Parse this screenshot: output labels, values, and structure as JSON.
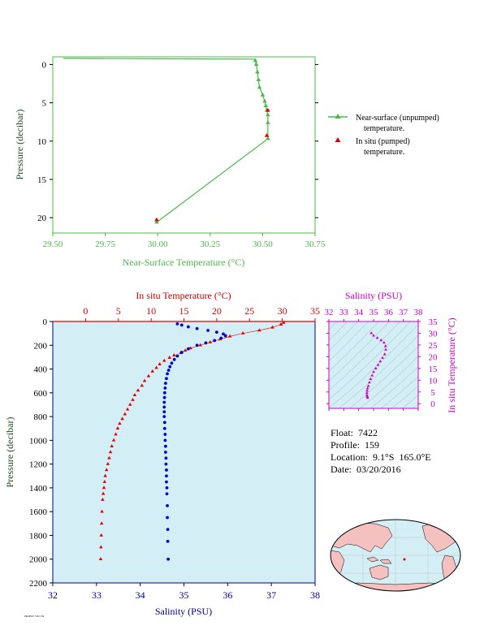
{
  "float_info": {
    "float_label": "Float:  7422",
    "profile_label": "Profile:  159",
    "location_label": "Location:  9.1°S  165.0°E",
    "date_label": "Date:  03/20/2016"
  },
  "footer_text": "PROFILE 7422 159",
  "colors": {
    "green": "#4cb84c",
    "red": "#e00000",
    "blue": "#0000cc",
    "magenta": "#cc00cc",
    "dark_axis": "#00008b",
    "ocean_bg": "#d4eef6",
    "land": "#f5c0c0"
  },
  "chart_data": [
    {
      "id": "near_surface",
      "type": "line",
      "xlabel": "Near-Surface Temperature (°C)",
      "ylabel": "Pressure (decibar)",
      "xlim": [
        29.5,
        30.75
      ],
      "ylim": [
        22,
        -1
      ],
      "xticks": [
        29.5,
        29.75,
        30.0,
        30.25,
        30.5,
        30.75
      ],
      "xtick_labels": [
        "29.50",
        "29.75",
        "30.00",
        "30.25",
        "30.50",
        "30.75"
      ],
      "yticks": [
        0,
        5,
        10,
        15,
        20
      ],
      "legend": [
        {
          "label_line1": "Near-surface (unpumped)",
          "label_line2": "temperature."
        },
        {
          "label_line1": "In situ (pumped)",
          "label_line2": "temperature."
        }
      ],
      "series": [
        {
          "name": "Near-surface (unpumped) temperature.",
          "x": [
            29.55,
            30.46,
            30.465,
            30.47,
            30.475,
            30.48,
            30.485,
            30.5,
            30.51,
            30.515,
            30.52,
            30.525,
            30.525,
            30.525,
            30.525,
            29.995
          ],
          "y": [
            -0.8,
            -0.7,
            -0.5,
            0.0,
            1.0,
            2.0,
            3.0,
            4.0,
            4.8,
            5.4,
            6.0,
            6.6,
            7.6,
            8.6,
            9.7,
            20.6
          ],
          "markers": [
            2,
            3,
            4,
            5,
            6,
            7,
            8,
            9,
            10,
            11,
            12,
            14,
            15
          ]
        },
        {
          "name": "In situ (pumped) temperature.",
          "x": [
            30.525,
            30.52,
            29.995
          ],
          "y": [
            6.0,
            9.3,
            20.3
          ]
        }
      ]
    },
    {
      "id": "profile",
      "type": "scatter",
      "xlabel_top": "In situ Temperature (°C)",
      "xlabel_bottom": "Salinity (PSU)",
      "ylabel": "Pressure (decibar)",
      "temp_lim": [
        -5,
        35
      ],
      "sal_lim": [
        32,
        38
      ],
      "ylim": [
        2200,
        0
      ],
      "temp_ticks": [
        0,
        5,
        10,
        15,
        20,
        25,
        30,
        35
      ],
      "sal_ticks": [
        32,
        33,
        34,
        35,
        36,
        37,
        38
      ],
      "yticks": [
        0,
        200,
        400,
        600,
        800,
        1000,
        1200,
        1400,
        1600,
        1800,
        2000,
        2200
      ],
      "temperature": {
        "name": "In situ Temperature",
        "t": [
          30.2,
          29.8,
          28.5,
          26.5,
          24.0,
          22.0,
          20.5,
          19.0,
          17.5,
          16.0,
          15.2,
          14.5,
          13.5,
          12.8,
          12.0,
          11.3,
          10.8,
          10.2,
          9.6,
          9.0,
          8.6,
          8.0,
          7.5,
          7.2,
          6.8,
          6.4,
          6.0,
          5.6,
          5.2,
          4.9,
          4.6,
          4.3,
          4.0,
          3.8,
          3.6,
          3.4,
          3.2,
          3.0,
          2.9,
          2.8,
          2.7,
          2.6,
          2.5,
          2.45,
          2.4,
          2.35,
          2.3
        ],
        "p": [
          10,
          25,
          50,
          75,
          100,
          125,
          150,
          175,
          200,
          225,
          245,
          265,
          285,
          305,
          330,
          360,
          390,
          420,
          460,
          500,
          540,
          580,
          620,
          660,
          700,
          740,
          780,
          820,
          860,
          900,
          950,
          1000,
          1050,
          1100,
          1150,
          1200,
          1250,
          1300,
          1350,
          1400,
          1450,
          1500,
          1600,
          1700,
          1800,
          1900,
          2000
        ]
      },
      "salinity": {
        "name": "Salinity",
        "s": [
          34.85,
          34.95,
          35.1,
          35.3,
          35.55,
          35.75,
          35.9,
          35.95,
          35.85,
          35.7,
          35.5,
          35.3,
          35.1,
          34.95,
          34.85,
          34.78,
          34.72,
          34.68,
          34.65,
          34.62,
          34.6,
          34.58,
          34.57,
          34.56,
          34.555,
          34.55,
          34.55,
          34.55,
          34.55,
          34.56,
          34.56,
          34.57,
          34.57,
          34.58,
          34.58,
          34.59,
          34.59,
          34.6,
          34.6,
          34.6,
          34.61,
          34.61,
          34.62,
          34.62,
          34.63,
          34.63,
          34.64
        ],
        "p": [
          20,
          30,
          45,
          60,
          75,
          90,
          105,
          120,
          140,
          160,
          180,
          200,
          230,
          260,
          290,
          320,
          350,
          380,
          410,
          440,
          480,
          520,
          560,
          600,
          640,
          680,
          720,
          760,
          800,
          850,
          900,
          950,
          1000,
          1050,
          1100,
          1150,
          1200,
          1250,
          1300,
          1350,
          1400,
          1450,
          1550,
          1650,
          1750,
          1850,
          2000
        ]
      }
    },
    {
      "id": "ts_diagram",
      "type": "scatter",
      "xlabel": "Salinity (PSU)",
      "ylabel": "In situ Temperature (°C)",
      "xlim": [
        32,
        38
      ],
      "ylim": [
        -2,
        35
      ],
      "xticks": [
        32,
        33,
        34,
        35,
        36,
        37,
        38
      ],
      "yticks": [
        0,
        5,
        10,
        15,
        20,
        25,
        30,
        35
      ],
      "s": [
        34.85,
        35.0,
        35.25,
        35.5,
        35.7,
        35.8,
        35.82,
        35.75,
        35.6,
        35.45,
        35.3,
        35.15,
        35.0,
        34.9,
        34.8,
        34.72,
        34.65,
        34.6,
        34.57,
        34.55,
        34.56,
        34.58,
        34.6
      ],
      "t": [
        30.0,
        29.0,
        28.0,
        27.0,
        26.0,
        24.5,
        23.0,
        21.0,
        19.5,
        18.0,
        16.5,
        15.0,
        13.5,
        12.0,
        10.5,
        9.0,
        7.5,
        6.5,
        5.5,
        4.5,
        3.5,
        3.0,
        2.5
      ]
    }
  ]
}
